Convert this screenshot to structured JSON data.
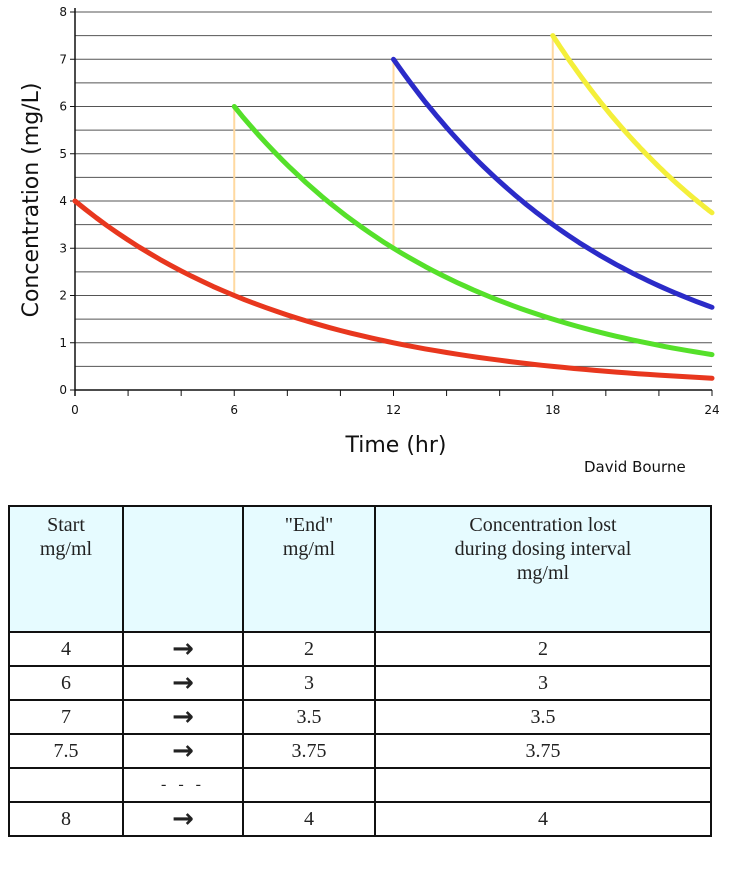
{
  "chart_data": {
    "type": "line",
    "xlabel": "Time (hr)",
    "ylabel": "Concentration (mg/L)",
    "xlim": [
      0,
      24
    ],
    "ylim": [
      0,
      8
    ],
    "x_ticks": [
      "0",
      "6",
      "12",
      "18",
      "24"
    ],
    "y_ticks": [
      "0",
      "1",
      "2",
      "3",
      "4",
      "5",
      "6",
      "7",
      "8"
    ],
    "grid": "horizontal",
    "series": [
      {
        "color": "#e8371e",
        "x": [
          0,
          3,
          6,
          9,
          12,
          15,
          18,
          21,
          24
        ],
        "y": [
          4,
          2.83,
          2,
          1.41,
          1,
          0.71,
          0.5,
          0.35,
          0.25
        ]
      },
      {
        "color": "#55e02a",
        "x": [
          6,
          9,
          12,
          15,
          18,
          21,
          24
        ],
        "y": [
          6,
          4.24,
          3,
          2.12,
          1.5,
          1.06,
          0.75
        ]
      },
      {
        "color": "#2b2bc8",
        "x": [
          12,
          15,
          18,
          21,
          24
        ],
        "y": [
          7,
          4.95,
          3.5,
          2.47,
          1.75
        ]
      },
      {
        "color": "#f4ef3a",
        "x": [
          18,
          21,
          24
        ],
        "y": [
          7.5,
          5.3,
          3.75
        ]
      }
    ],
    "dose_lines": [
      {
        "x": 6,
        "from": 2,
        "to": 6
      },
      {
        "x": 12,
        "from": 3,
        "to": 7
      },
      {
        "x": 18,
        "from": 3.5,
        "to": 7.5
      }
    ],
    "dose_line_color": "#ffd9a0"
  },
  "credit": "David Bourne",
  "table": {
    "headers": [
      [
        "Start",
        "mg/ml"
      ],
      [],
      [
        "\"End\"",
        "mg/ml"
      ],
      [
        "Concentration lost",
        "during dosing interval",
        "mg/ml"
      ]
    ],
    "rows": [
      {
        "start": "4",
        "arrow": "→",
        "end": "2",
        "lost": "2"
      },
      {
        "start": "6",
        "arrow": "→",
        "end": "3",
        "lost": "3"
      },
      {
        "start": "7",
        "arrow": "→",
        "end": "3.5",
        "lost": "3.5"
      },
      {
        "start": "7.5",
        "arrow": "→",
        "end": "3.75",
        "lost": "3.75"
      },
      {
        "start": "",
        "arrow": "- - -",
        "end": "",
        "lost": ""
      },
      {
        "start": "8",
        "arrow": "→",
        "end": "4",
        "lost": "4"
      }
    ]
  }
}
